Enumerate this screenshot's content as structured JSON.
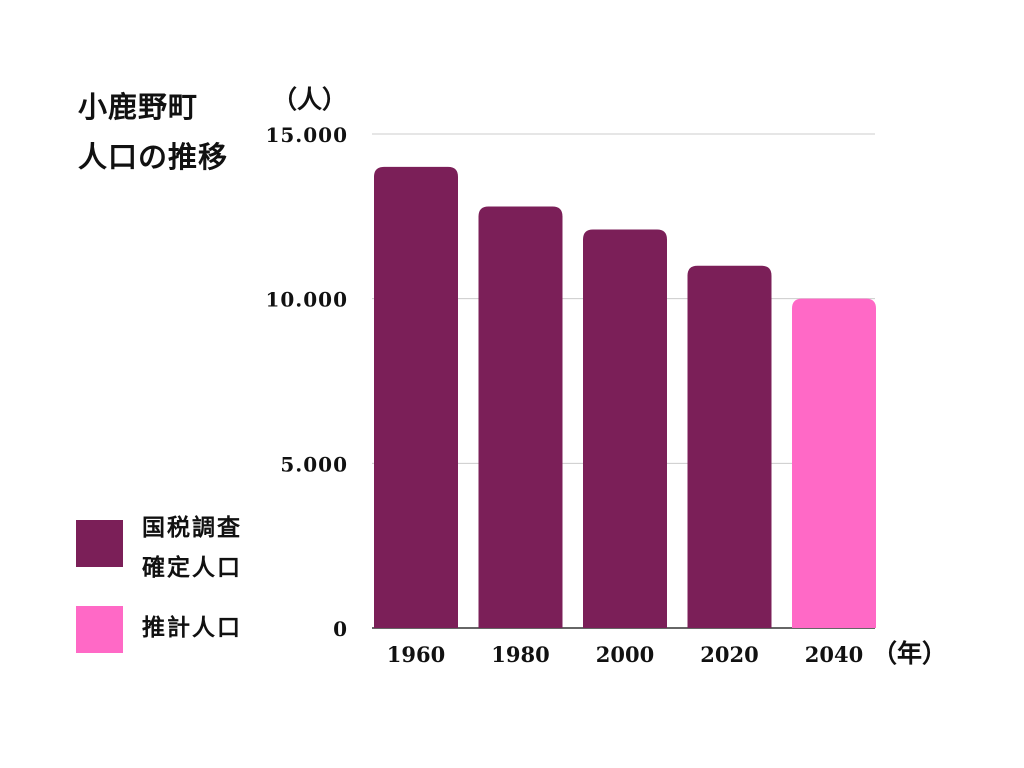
{
  "title_lines": [
    "小鹿野町",
    "人口の推移"
  ],
  "chart_data": {
    "type": "bar",
    "title": "小鹿野町人口の推移",
    "ylabel": "（人）",
    "xlabel": "（年）",
    "categories": [
      "1960",
      "1980",
      "2000",
      "2020",
      "2040"
    ],
    "values": [
      14000,
      12800,
      12100,
      11000,
      10000
    ],
    "series_of_bar": [
      "国税調査確定人口",
      "国税調査確定人口",
      "国税調査確定人口",
      "国税調査確定人口",
      "推計人口"
    ],
    "ylim": [
      0,
      15000
    ],
    "yticks": [
      0,
      5000,
      10000,
      15000
    ],
    "ytick_labels": [
      "0",
      "5.000",
      "10.000",
      "15.000"
    ],
    "grid": true,
    "legend_placement": "bottom-left",
    "series": [
      {
        "name": "国税調査確定人口",
        "name_lines": [
          "国税調査",
          "確定人口"
        ],
        "color": "#7b1f58"
      },
      {
        "name": "推計人口",
        "name_lines": [
          "推計人口"
        ],
        "color": "#ff69c6"
      }
    ]
  },
  "colors": {
    "grid": "#cccccc",
    "axis": "#333333",
    "text": "#111111"
  }
}
